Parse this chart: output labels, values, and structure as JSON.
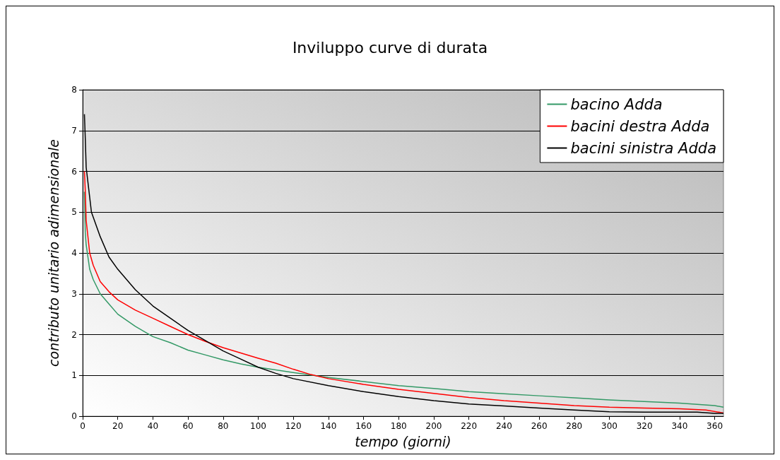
{
  "chart_data": {
    "type": "line",
    "title": "Inviluppo curve di durata",
    "xlabel": "tempo (giorni)",
    "ylabel": "contributo unitario adimensionale",
    "xlim": [
      0,
      365
    ],
    "xticks": [
      0,
      20,
      40,
      60,
      80,
      100,
      120,
      140,
      160,
      180,
      200,
      220,
      240,
      260,
      280,
      300,
      320,
      340,
      360
    ],
    "ylim": [
      0,
      8
    ],
    "yticks": [
      0,
      1,
      2,
      3,
      4,
      5,
      6,
      7,
      8
    ],
    "grid": "y",
    "legend": "top right",
    "marker": "none",
    "line_style": "solid",
    "series": [
      {
        "name": "bacino Adda",
        "color": "#339966",
        "x": [
          1,
          1.5,
          2,
          4,
          6,
          10,
          15,
          20,
          30,
          40,
          50,
          60,
          70,
          80,
          90,
          100,
          120,
          140,
          160,
          180,
          200,
          220,
          240,
          260,
          280,
          300,
          320,
          340,
          360,
          365
        ],
        "values": [
          5.5,
          4.5,
          4.2,
          3.6,
          3.35,
          3.0,
          2.75,
          2.5,
          2.2,
          1.95,
          1.8,
          1.62,
          1.5,
          1.38,
          1.28,
          1.2,
          1.07,
          0.95,
          0.85,
          0.75,
          0.68,
          0.6,
          0.55,
          0.5,
          0.45,
          0.4,
          0.36,
          0.32,
          0.26,
          0.22
        ]
      },
      {
        "name": "bacini destra Adda",
        "color": "#ff0000",
        "x": [
          1,
          1.5,
          2,
          4,
          6,
          10,
          15,
          20,
          30,
          40,
          50,
          60,
          70,
          80,
          90,
          100,
          110,
          120,
          130,
          140,
          160,
          180,
          200,
          220,
          240,
          260,
          280,
          300,
          320,
          340,
          355,
          365
        ],
        "values": [
          6.0,
          5.5,
          4.8,
          4.0,
          3.7,
          3.3,
          3.05,
          2.85,
          2.6,
          2.4,
          2.2,
          2.0,
          1.83,
          1.68,
          1.55,
          1.42,
          1.3,
          1.15,
          1.02,
          0.92,
          0.78,
          0.66,
          0.56,
          0.46,
          0.38,
          0.32,
          0.26,
          0.22,
          0.2,
          0.18,
          0.15,
          0.08
        ]
      },
      {
        "name": "bacini sinistra Adda",
        "color": "#000000",
        "x": [
          1,
          1.5,
          2,
          5,
          10,
          15,
          20,
          30,
          40,
          50,
          60,
          70,
          80,
          90,
          100,
          110,
          120,
          140,
          160,
          180,
          200,
          220,
          240,
          260,
          280,
          300,
          320,
          340,
          350,
          360,
          365
        ],
        "values": [
          7.4,
          6.8,
          6.1,
          5.0,
          4.4,
          3.9,
          3.6,
          3.1,
          2.7,
          2.4,
          2.1,
          1.85,
          1.6,
          1.4,
          1.2,
          1.05,
          0.92,
          0.75,
          0.6,
          0.48,
          0.38,
          0.3,
          0.25,
          0.2,
          0.15,
          0.11,
          0.1,
          0.1,
          0.1,
          0.07,
          0.07
        ]
      }
    ]
  }
}
